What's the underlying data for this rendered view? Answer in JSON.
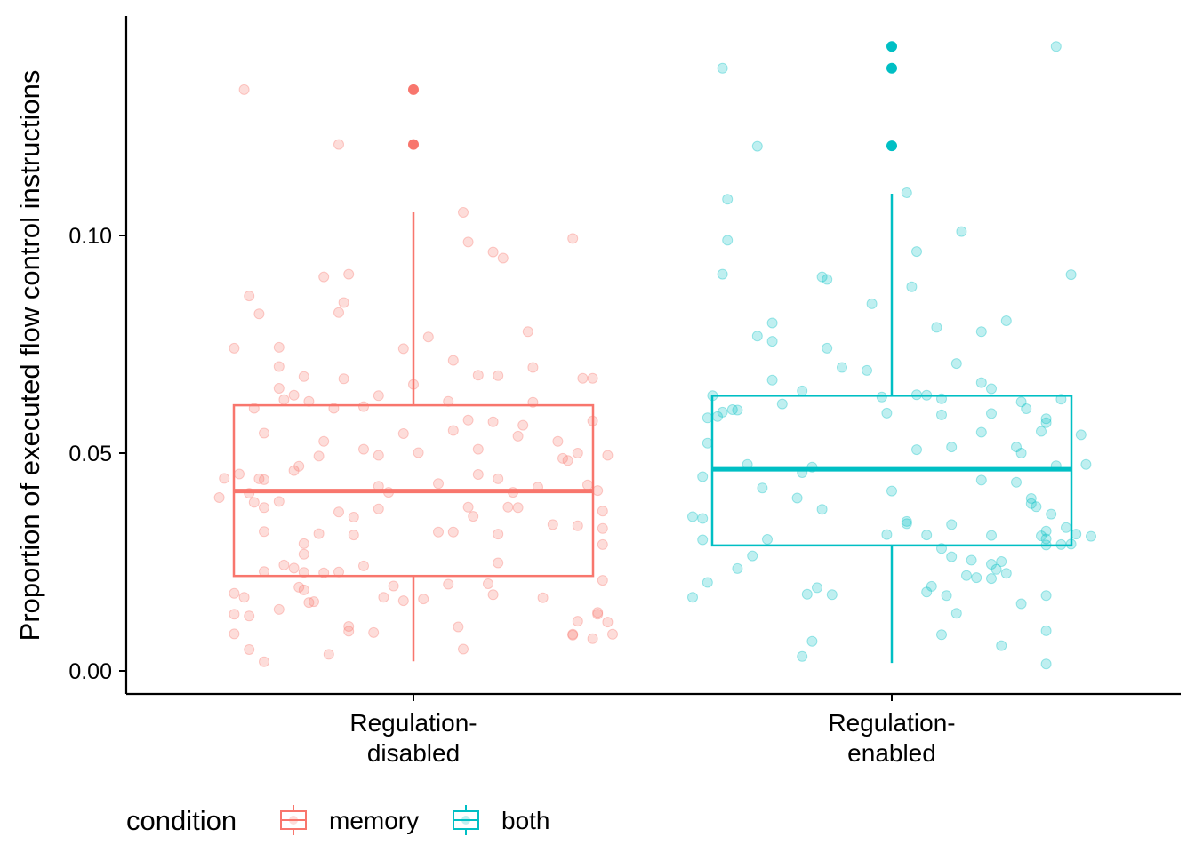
{
  "chart_data": {
    "type": "boxplot",
    "ylabel": "Proportion of executed flow control instructions",
    "xlabel": "",
    "y_ticks": [
      "0.00",
      "0.05",
      "0.10"
    ],
    "y_tick_values": [
      0.0,
      0.05,
      0.1
    ],
    "ylim": [
      -0.0025,
      0.1485
    ],
    "categories": [
      {
        "label_line1": "Regulation-",
        "label_line2": "disabled"
      },
      {
        "label_line1": "Regulation-",
        "label_line2": "enabled"
      }
    ],
    "series": [
      {
        "name": "memory",
        "category_index": 0,
        "color": "#F8766D",
        "box": {
          "whisker_low": 0.0022,
          "q1": 0.0218,
          "median": 0.0413,
          "q3": 0.061,
          "whisker_high": 0.1053
        },
        "outliers": [
          0.1335,
          0.1209
        ],
        "points": [
          [
            -0.34,
            0.1335
          ],
          [
            -0.15,
            0.1209
          ],
          [
            0.1,
            0.1053
          ],
          [
            0.11,
            0.0985
          ],
          [
            0.16,
            0.0962
          ],
          [
            0.18,
            0.0948
          ],
          [
            0.32,
            0.0993
          ],
          [
            -0.33,
            0.0861
          ],
          [
            -0.31,
            0.082
          ],
          [
            -0.18,
            0.0905
          ],
          [
            -0.13,
            0.0911
          ],
          [
            -0.14,
            0.0846
          ],
          [
            -0.15,
            0.0823
          ],
          [
            -0.36,
            0.0741
          ],
          [
            -0.27,
            0.0743
          ],
          [
            -0.02,
            0.074
          ],
          [
            0.03,
            0.0767
          ],
          [
            0.08,
            0.0713
          ],
          [
            0.23,
            0.0779
          ],
          [
            0.24,
            0.0697
          ],
          [
            -0.27,
            0.0699
          ],
          [
            -0.22,
            0.0676
          ],
          [
            -0.14,
            0.0671
          ],
          [
            -0.07,
            0.0632
          ],
          [
            0.0,
            0.0658
          ],
          [
            0.13,
            0.0679
          ],
          [
            0.17,
            0.0678
          ],
          [
            0.34,
            0.0672
          ],
          [
            0.36,
            0.0672
          ],
          [
            -0.32,
            0.0603
          ],
          [
            -0.27,
            0.0649
          ],
          [
            -0.26,
            0.0623
          ],
          [
            -0.24,
            0.0633
          ],
          [
            -0.21,
            0.0619
          ],
          [
            -0.16,
            0.0603
          ],
          [
            -0.1,
            0.0607
          ],
          [
            0.07,
            0.0619
          ],
          [
            0.11,
            0.0576
          ],
          [
            0.16,
            0.0572
          ],
          [
            0.22,
            0.0564
          ],
          [
            0.24,
            0.0617
          ],
          [
            0.36,
            0.0574
          ],
          [
            -0.3,
            0.0546
          ],
          [
            -0.18,
            0.0527
          ],
          [
            -0.1,
            0.0509
          ],
          [
            -0.07,
            0.0495
          ],
          [
            -0.02,
            0.0545
          ],
          [
            0.01,
            0.0501
          ],
          [
            0.08,
            0.0552
          ],
          [
            0.13,
            0.0509
          ],
          [
            0.21,
            0.0539
          ],
          [
            0.29,
            0.0527
          ],
          [
            0.3,
            0.0488
          ],
          [
            0.33,
            0.05
          ],
          [
            0.39,
            0.0495
          ],
          [
            -0.38,
            0.0442
          ],
          [
            -0.35,
            0.0452
          ],
          [
            -0.33,
            0.0408
          ],
          [
            -0.31,
            0.0441
          ],
          [
            -0.3,
            0.0439
          ],
          [
            -0.27,
            0.0389
          ],
          [
            -0.23,
            0.047
          ],
          [
            -0.24,
            0.046
          ],
          [
            -0.19,
            0.0493
          ],
          [
            -0.07,
            0.0424
          ],
          [
            -0.05,
            0.041
          ],
          [
            0.05,
            0.043
          ],
          [
            0.13,
            0.0451
          ],
          [
            0.17,
            0.0441
          ],
          [
            0.2,
            0.041
          ],
          [
            0.21,
            0.0375
          ],
          [
            0.25,
            0.0422
          ],
          [
            0.31,
            0.0483
          ],
          [
            0.35,
            0.0427
          ],
          [
            0.37,
            0.0414
          ],
          [
            -0.39,
            0.0398
          ],
          [
            -0.32,
            0.0387
          ],
          [
            -0.3,
            0.0375
          ],
          [
            -0.15,
            0.0365
          ],
          [
            -0.12,
            0.0353
          ],
          [
            -0.07,
            0.0372
          ],
          [
            0.11,
            0.0376
          ],
          [
            0.12,
            0.0355
          ],
          [
            0.17,
            0.0314
          ],
          [
            0.19,
            0.0376
          ],
          [
            0.28,
            0.0336
          ],
          [
            0.33,
            0.0333
          ],
          [
            0.38,
            0.0367
          ],
          [
            0.38,
            0.0327
          ],
          [
            0.38,
            0.029
          ],
          [
            -0.3,
            0.032
          ],
          [
            -0.22,
            0.0292
          ],
          [
            -0.22,
            0.0268
          ],
          [
            -0.19,
            0.0315
          ],
          [
            -0.12,
            0.0312
          ],
          [
            0.05,
            0.0319
          ],
          [
            0.08,
            0.0319
          ],
          [
            -0.3,
            0.0228
          ],
          [
            -0.26,
            0.0243
          ],
          [
            -0.24,
            0.0236
          ],
          [
            -0.22,
            0.0226
          ],
          [
            -0.18,
            0.0225
          ],
          [
            -0.15,
            0.0227
          ],
          [
            -0.1,
            0.0241
          ],
          [
            0.17,
            0.0248
          ],
          [
            -0.36,
            0.0178
          ],
          [
            -0.34,
            0.0169
          ],
          [
            -0.23,
            0.0192
          ],
          [
            -0.22,
            0.0186
          ],
          [
            -0.21,
            0.0157
          ],
          [
            -0.2,
            0.0159
          ],
          [
            -0.04,
            0.0195
          ],
          [
            -0.06,
            0.0169
          ],
          [
            0.02,
            0.0165
          ],
          [
            0.07,
            0.0199
          ],
          [
            0.15,
            0.02
          ],
          [
            0.16,
            0.0175
          ],
          [
            0.26,
            0.0168
          ],
          [
            0.38,
            0.0208
          ],
          [
            -0.36,
            0.013
          ],
          [
            -0.33,
            0.0126
          ],
          [
            -0.27,
            0.0141
          ],
          [
            -0.13,
            0.0102
          ],
          [
            -0.13,
            0.0091
          ],
          [
            -0.08,
            0.0088
          ],
          [
            -0.02,
            0.0161
          ],
          [
            0.09,
            0.0101
          ],
          [
            0.32,
            0.0082
          ],
          [
            0.33,
            0.0114
          ],
          [
            0.37,
            0.0134
          ],
          [
            0.37,
            0.013
          ],
          [
            0.39,
            0.0112
          ],
          [
            -0.36,
            0.0085
          ],
          [
            -0.33,
            0.0049
          ],
          [
            -0.3,
            0.0021
          ],
          [
            -0.17,
            0.0038
          ],
          [
            0.1,
            0.005
          ],
          [
            0.32,
            0.0084
          ],
          [
            0.36,
            0.0074
          ],
          [
            0.4,
            0.0084
          ]
        ]
      },
      {
        "name": "both",
        "category_index": 1,
        "color": "#00BFC4",
        "box": {
          "whisker_low": 0.0018,
          "q1": 0.0288,
          "median": 0.0463,
          "q3": 0.0632,
          "whisker_high": 0.1096
        },
        "outliers": [
          0.1434,
          0.1384,
          0.1206
        ],
        "points": [
          [
            -0.34,
            0.1384
          ],
          [
            0.33,
            0.1434
          ],
          [
            -0.27,
            0.1205
          ],
          [
            -0.33,
            0.1083
          ],
          [
            -0.33,
            0.0989
          ],
          [
            -0.34,
            0.0911
          ],
          [
            0.03,
            0.1098
          ],
          [
            0.05,
            0.0963
          ],
          [
            0.14,
            0.1009
          ],
          [
            0.36,
            0.091
          ],
          [
            -0.14,
            0.0905
          ],
          [
            -0.13,
            0.0899
          ],
          [
            -0.04,
            0.0843
          ],
          [
            0.04,
            0.0882
          ],
          [
            -0.24,
            0.0799
          ],
          [
            -0.27,
            0.0769
          ],
          [
            -0.24,
            0.0757
          ],
          [
            -0.13,
            0.0741
          ],
          [
            -0.1,
            0.0697
          ],
          [
            -0.05,
            0.069
          ],
          [
            0.09,
            0.0789
          ],
          [
            0.13,
            0.0706
          ],
          [
            0.18,
            0.0779
          ],
          [
            0.23,
            0.0804
          ],
          [
            -0.24,
            0.0668
          ],
          [
            -0.18,
            0.0643
          ],
          [
            0.05,
            0.0634
          ],
          [
            0.07,
            0.0633
          ],
          [
            0.18,
            0.0662
          ],
          [
            0.2,
            0.0648
          ],
          [
            -0.36,
            0.0632
          ],
          [
            -0.37,
            0.0581
          ],
          [
            -0.35,
            0.0584
          ],
          [
            -0.34,
            0.0594
          ],
          [
            -0.31,
            0.0599
          ],
          [
            -0.32,
            0.06
          ],
          [
            -0.22,
            0.0613
          ],
          [
            -0.02,
            0.0629
          ],
          [
            -0.01,
            0.0592
          ],
          [
            0.1,
            0.0588
          ],
          [
            0.1,
            0.0625
          ],
          [
            0.2,
            0.0591
          ],
          [
            0.26,
            0.0618
          ],
          [
            0.27,
            0.0602
          ],
          [
            0.31,
            0.057
          ],
          [
            0.31,
            0.0579
          ],
          [
            0.3,
            0.055
          ],
          [
            0.34,
            0.0624
          ],
          [
            0.38,
            0.0542
          ],
          [
            -0.37,
            0.0523
          ],
          [
            -0.38,
            0.0446
          ],
          [
            -0.29,
            0.0474
          ],
          [
            -0.16,
            0.0468
          ],
          [
            -0.26,
            0.042
          ],
          [
            0.0,
            0.0413
          ],
          [
            0.05,
            0.0508
          ],
          [
            0.12,
            0.0514
          ],
          [
            0.18,
            0.0548
          ],
          [
            0.25,
            0.0514
          ],
          [
            0.26,
            0.05
          ],
          [
            0.25,
            0.0433
          ],
          [
            0.33,
            0.0471
          ],
          [
            0.39,
            0.0474
          ],
          [
            -0.4,
            0.0354
          ],
          [
            -0.38,
            0.035
          ],
          [
            -0.38,
            0.0301
          ],
          [
            -0.19,
            0.0397
          ],
          [
            -0.14,
            0.0371
          ],
          [
            -0.18,
            0.0455
          ],
          [
            0.18,
            0.0438
          ],
          [
            0.28,
            0.0396
          ],
          [
            0.28,
            0.0384
          ],
          [
            0.29,
            0.0377
          ],
          [
            0.32,
            0.036
          ],
          [
            0.31,
            0.0321
          ],
          [
            0.35,
            0.0329
          ],
          [
            0.3,
            0.031
          ],
          [
            0.31,
            0.0303
          ],
          [
            -0.25,
            0.0302
          ],
          [
            -0.28,
            0.0264
          ],
          [
            -0.31,
            0.0235
          ],
          [
            -0.37,
            0.0203
          ],
          [
            -0.4,
            0.0169
          ],
          [
            -0.17,
            0.0176
          ],
          [
            -0.15,
            0.0191
          ],
          [
            -0.12,
            0.0175
          ],
          [
            -0.01,
            0.0313
          ],
          [
            0.03,
            0.0343
          ],
          [
            0.03,
            0.0338
          ],
          [
            0.07,
            0.0312
          ],
          [
            0.1,
            0.0281
          ],
          [
            0.12,
            0.0336
          ],
          [
            0.16,
            0.0254
          ],
          [
            0.2,
            0.0311
          ],
          [
            0.31,
            0.0289
          ],
          [
            0.34,
            0.029
          ],
          [
            0.37,
            0.0314
          ],
          [
            0.4,
            0.0309
          ],
          [
            0.36,
            0.0291
          ],
          [
            0.12,
            0.0262
          ],
          [
            0.15,
            0.0219
          ],
          [
            0.17,
            0.0214
          ],
          [
            0.2,
            0.0212
          ],
          [
            0.2,
            0.0245
          ],
          [
            0.21,
            0.0233
          ],
          [
            0.22,
            0.0251
          ],
          [
            0.23,
            0.0224
          ],
          [
            0.07,
            0.0181
          ],
          [
            0.08,
            0.0194
          ],
          [
            0.11,
            0.0173
          ],
          [
            0.13,
            0.0132
          ],
          [
            0.26,
            0.0154
          ],
          [
            0.31,
            0.0173
          ],
          [
            -0.16,
            0.0068
          ],
          [
            -0.18,
            0.0033
          ],
          [
            0.1,
            0.0083
          ],
          [
            0.22,
            0.0058
          ],
          [
            0.31,
            0.0092
          ],
          [
            0.31,
            0.0016
          ]
        ]
      }
    ],
    "legend": {
      "title": "condition",
      "position": "bottom-left",
      "items": [
        {
          "label": "memory",
          "color": "#F8766D"
        },
        {
          "label": "both",
          "color": "#00BFC4"
        }
      ]
    },
    "grid": false
  }
}
